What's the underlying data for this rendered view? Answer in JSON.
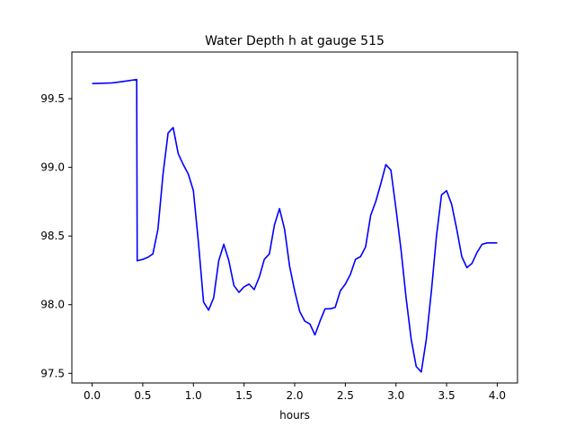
{
  "chart_data": {
    "type": "line",
    "title": "Water Depth h at gauge 515",
    "xlabel": "hours",
    "ylabel": "",
    "xlim": [
      -0.2,
      4.2
    ],
    "ylim": [
      97.43,
      99.84
    ],
    "xticks": [
      0.0,
      0.5,
      1.0,
      1.5,
      2.0,
      2.5,
      3.0,
      3.5,
      4.0
    ],
    "xtick_labels": [
      "0.0",
      "0.5",
      "1.0",
      "1.5",
      "2.0",
      "2.5",
      "3.0",
      "3.5",
      "4.0"
    ],
    "yticks": [
      97.5,
      98.0,
      98.5,
      99.0,
      99.5
    ],
    "ytick_labels": [
      "97.5",
      "98.0",
      "98.5",
      "99.0",
      "99.5"
    ],
    "grid": false,
    "series": [
      {
        "name": "",
        "color": "#0000ff",
        "x": [
          0.0,
          0.2,
          0.3,
          0.44,
          0.445,
          0.5,
          0.55,
          0.6,
          0.65,
          0.7,
          0.75,
          0.8,
          0.85,
          0.9,
          0.95,
          1.0,
          1.05,
          1.1,
          1.15,
          1.2,
          1.25,
          1.3,
          1.35,
          1.4,
          1.45,
          1.5,
          1.55,
          1.6,
          1.65,
          1.7,
          1.75,
          1.8,
          1.85,
          1.9,
          1.95,
          2.0,
          2.05,
          2.1,
          2.15,
          2.2,
          2.25,
          2.3,
          2.35,
          2.4,
          2.45,
          2.5,
          2.55,
          2.6,
          2.65,
          2.7,
          2.75,
          2.8,
          2.85,
          2.9,
          2.95,
          3.0,
          3.05,
          3.1,
          3.15,
          3.2,
          3.25,
          3.3,
          3.35,
          3.4,
          3.45,
          3.5,
          3.55,
          3.6,
          3.65,
          3.7,
          3.75,
          3.8,
          3.85,
          3.9,
          3.95,
          4.0
        ],
        "y": [
          99.61,
          99.615,
          99.625,
          99.64,
          98.32,
          98.33,
          98.345,
          98.37,
          98.55,
          98.95,
          99.25,
          99.29,
          99.1,
          99.02,
          98.95,
          98.83,
          98.45,
          98.02,
          97.96,
          98.05,
          98.32,
          98.44,
          98.32,
          98.14,
          98.09,
          98.13,
          98.15,
          98.11,
          98.2,
          98.33,
          98.37,
          98.58,
          98.7,
          98.55,
          98.28,
          98.1,
          97.95,
          97.88,
          97.86,
          97.78,
          97.88,
          97.97,
          97.97,
          97.98,
          98.1,
          98.15,
          98.22,
          98.33,
          98.35,
          98.42,
          98.65,
          98.75,
          98.88,
          99.02,
          98.98,
          98.7,
          98.4,
          98.05,
          97.75,
          97.55,
          97.51,
          97.75,
          98.1,
          98.5,
          98.8,
          98.83,
          98.73,
          98.55,
          98.35,
          98.27,
          98.3,
          98.38,
          98.44,
          98.45,
          98.45,
          98.45
        ]
      }
    ]
  }
}
